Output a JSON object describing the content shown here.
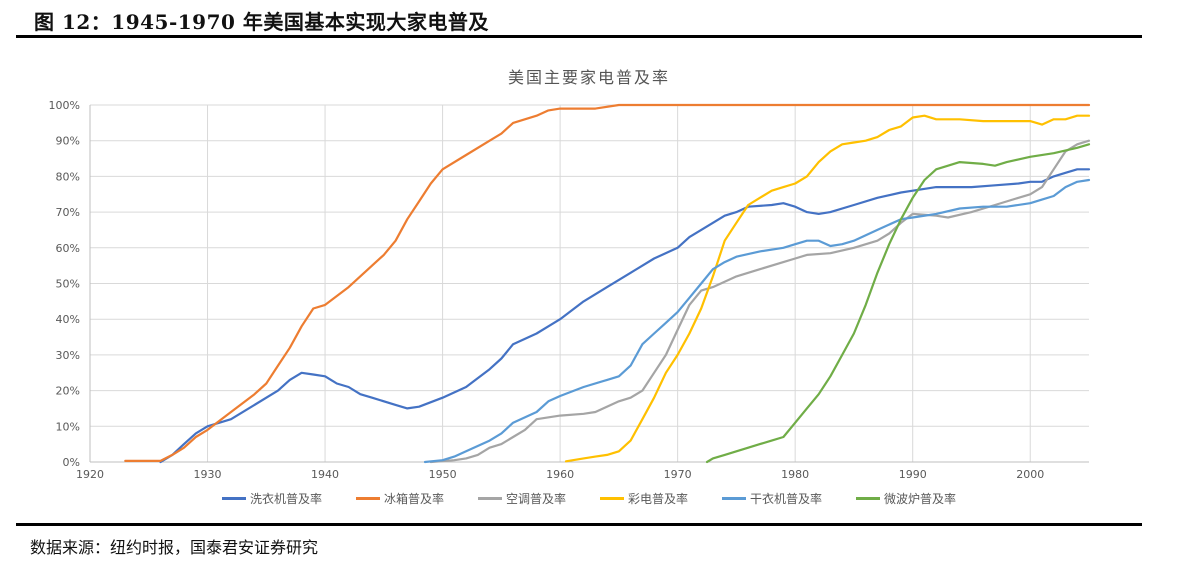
{
  "figure": {
    "title": "图 12：1945-1970 年美国基本实现大家电普及",
    "source": "数据来源：纽约时报，国泰君安证券研究"
  },
  "chart_data": {
    "type": "line",
    "title": "美国主要家电普及率",
    "xlabel": "",
    "ylabel": "",
    "x_ticks": [
      "1920",
      "1930",
      "1940",
      "1950",
      "1960",
      "1970",
      "1980",
      "1990",
      "2000"
    ],
    "y_ticks": [
      "0%",
      "10%",
      "20%",
      "30%",
      "40%",
      "50%",
      "60%",
      "70%",
      "80%",
      "90%",
      "100%"
    ],
    "xlim": [
      1920,
      2005
    ],
    "ylim": [
      0,
      100
    ],
    "grid": true,
    "legend_position": "bottom",
    "series": [
      {
        "name": "洗衣机普及率",
        "color": "#4472C4",
        "points": [
          [
            1926,
            0
          ],
          [
            1927,
            2
          ],
          [
            1928,
            5
          ],
          [
            1929,
            8
          ],
          [
            1930,
            10
          ],
          [
            1932,
            12
          ],
          [
            1934,
            16
          ],
          [
            1936,
            20
          ],
          [
            1937,
            23
          ],
          [
            1938,
            25
          ],
          [
            1939,
            24.5
          ],
          [
            1940,
            24
          ],
          [
            1941,
            22
          ],
          [
            1942,
            21
          ],
          [
            1943,
            19
          ],
          [
            1944,
            18
          ],
          [
            1946,
            16
          ],
          [
            1947,
            15
          ],
          [
            1948,
            15.5
          ],
          [
            1950,
            18
          ],
          [
            1952,
            21
          ],
          [
            1954,
            26
          ],
          [
            1955,
            29
          ],
          [
            1956,
            33
          ],
          [
            1958,
            36
          ],
          [
            1959,
            38
          ],
          [
            1960,
            40
          ],
          [
            1962,
            45
          ],
          [
            1964,
            49
          ],
          [
            1966,
            53
          ],
          [
            1968,
            57
          ],
          [
            1970,
            60
          ],
          [
            1971,
            63
          ],
          [
            1972,
            65
          ],
          [
            1974,
            69
          ],
          [
            1975,
            70
          ],
          [
            1976,
            71.5
          ],
          [
            1978,
            72
          ],
          [
            1979,
            72.5
          ],
          [
            1980,
            71.5
          ],
          [
            1981,
            70
          ],
          [
            1982,
            69.5
          ],
          [
            1983,
            70
          ],
          [
            1985,
            72
          ],
          [
            1987,
            74
          ],
          [
            1989,
            75.5
          ],
          [
            1990,
            76
          ],
          [
            1992,
            77
          ],
          [
            1995,
            77
          ],
          [
            1997,
            77.5
          ],
          [
            1999,
            78
          ],
          [
            2000,
            78.5
          ],
          [
            2001,
            78.5
          ],
          [
            2002,
            80
          ],
          [
            2003,
            81
          ],
          [
            2004,
            82
          ],
          [
            2005,
            82
          ]
        ]
      },
      {
        "name": "冰箱普及率",
        "color": "#ED7D31",
        "points": [
          [
            1923,
            0.3
          ],
          [
            1926,
            0.3
          ],
          [
            1927,
            2
          ],
          [
            1928,
            4
          ],
          [
            1929,
            7
          ],
          [
            1930,
            9
          ],
          [
            1932,
            14
          ],
          [
            1934,
            19
          ],
          [
            1935,
            22
          ],
          [
            1936,
            27
          ],
          [
            1937,
            32
          ],
          [
            1938,
            38
          ],
          [
            1939,
            43
          ],
          [
            1940,
            44
          ],
          [
            1942,
            49
          ],
          [
            1944,
            55
          ],
          [
            1945,
            58
          ],
          [
            1946,
            62
          ],
          [
            1947,
            68
          ],
          [
            1948,
            73
          ],
          [
            1949,
            78
          ],
          [
            1950,
            82
          ],
          [
            1952,
            86
          ],
          [
            1954,
            90
          ],
          [
            1955,
            92
          ],
          [
            1956,
            95
          ],
          [
            1958,
            97
          ],
          [
            1959,
            98.5
          ],
          [
            1960,
            99
          ],
          [
            1963,
            99
          ],
          [
            1965,
            100
          ],
          [
            1970,
            100
          ],
          [
            1980,
            100
          ],
          [
            1990,
            100
          ],
          [
            2000,
            100
          ],
          [
            2005,
            100
          ]
        ]
      },
      {
        "name": "空调普及率",
        "color": "#A5A5A5",
        "points": [
          [
            1949,
            0
          ],
          [
            1951,
            0.5
          ],
          [
            1952,
            1
          ],
          [
            1953,
            2
          ],
          [
            1954,
            4
          ],
          [
            1955,
            5
          ],
          [
            1956,
            7
          ],
          [
            1957,
            9
          ],
          [
            1958,
            12
          ],
          [
            1960,
            13
          ],
          [
            1962,
            13.5
          ],
          [
            1963,
            14
          ],
          [
            1965,
            17
          ],
          [
            1966,
            18
          ],
          [
            1967,
            20
          ],
          [
            1968,
            25
          ],
          [
            1969,
            30
          ],
          [
            1970,
            37
          ],
          [
            1971,
            44
          ],
          [
            1972,
            48
          ],
          [
            1973,
            49
          ],
          [
            1975,
            52
          ],
          [
            1977,
            54
          ],
          [
            1979,
            56
          ],
          [
            1980,
            57
          ],
          [
            1981,
            58
          ],
          [
            1983,
            58.5
          ],
          [
            1985,
            60
          ],
          [
            1987,
            62
          ],
          [
            1988,
            64
          ],
          [
            1989,
            67
          ],
          [
            1990,
            69.5
          ],
          [
            1992,
            69
          ],
          [
            1993,
            68.5
          ],
          [
            1995,
            70
          ],
          [
            1997,
            72
          ],
          [
            1999,
            74
          ],
          [
            2000,
            75
          ],
          [
            2001,
            77
          ],
          [
            2002,
            82
          ],
          [
            2003,
            87
          ],
          [
            2004,
            89
          ],
          [
            2005,
            90
          ]
        ]
      },
      {
        "name": "彩电普及率",
        "color": "#FFC000",
        "points": [
          [
            1960.5,
            0.2
          ],
          [
            1962,
            1
          ],
          [
            1963,
            1.5
          ],
          [
            1964,
            2
          ],
          [
            1965,
            3
          ],
          [
            1966,
            6
          ],
          [
            1967,
            12
          ],
          [
            1968,
            18
          ],
          [
            1969,
            25
          ],
          [
            1970,
            30
          ],
          [
            1971,
            36
          ],
          [
            1972,
            43
          ],
          [
            1973,
            52
          ],
          [
            1974,
            62
          ],
          [
            1975,
            67
          ],
          [
            1976,
            72
          ],
          [
            1977,
            74
          ],
          [
            1978,
            76
          ],
          [
            1979,
            77
          ],
          [
            1980,
            78
          ],
          [
            1981,
            80
          ],
          [
            1982,
            84
          ],
          [
            1983,
            87
          ],
          [
            1984,
            89
          ],
          [
            1985,
            89.5
          ],
          [
            1986,
            90
          ],
          [
            1987,
            91
          ],
          [
            1988,
            93
          ],
          [
            1989,
            94
          ],
          [
            1990,
            96.5
          ],
          [
            1991,
            97
          ],
          [
            1992,
            96
          ],
          [
            1994,
            96
          ],
          [
            1996,
            95.5
          ],
          [
            1998,
            95.5
          ],
          [
            2000,
            95.5
          ],
          [
            2001,
            94.5
          ],
          [
            2002,
            96
          ],
          [
            2003,
            96
          ],
          [
            2004,
            97
          ],
          [
            2005,
            97
          ]
        ]
      },
      {
        "name": "干衣机普及率",
        "color": "#5B9BD5",
        "points": [
          [
            1948.5,
            0
          ],
          [
            1950,
            0.5
          ],
          [
            1951,
            1.5
          ],
          [
            1952,
            3
          ],
          [
            1954,
            6
          ],
          [
            1955,
            8
          ],
          [
            1956,
            11
          ],
          [
            1958,
            14
          ],
          [
            1959,
            17
          ],
          [
            1960,
            18.5
          ],
          [
            1962,
            21
          ],
          [
            1964,
            23
          ],
          [
            1965,
            24
          ],
          [
            1966,
            27
          ],
          [
            1967,
            33
          ],
          [
            1968,
            36
          ],
          [
            1969,
            39
          ],
          [
            1970,
            42
          ],
          [
            1971,
            46
          ],
          [
            1972,
            50
          ],
          [
            1973,
            54
          ],
          [
            1974,
            56
          ],
          [
            1975,
            57.5
          ],
          [
            1977,
            59
          ],
          [
            1979,
            60
          ],
          [
            1980,
            61
          ],
          [
            1981,
            62
          ],
          [
            1982,
            62
          ],
          [
            1983,
            60.5
          ],
          [
            1984,
            61
          ],
          [
            1985,
            62
          ],
          [
            1987,
            65
          ],
          [
            1989,
            68
          ],
          [
            1990,
            68.5
          ],
          [
            1992,
            69.5
          ],
          [
            1994,
            71
          ],
          [
            1996,
            71.5
          ],
          [
            1998,
            71.5
          ],
          [
            2000,
            72.5
          ],
          [
            2001,
            73.5
          ],
          [
            2002,
            74.5
          ],
          [
            2003,
            77
          ],
          [
            2004,
            78.5
          ],
          [
            2005,
            79
          ]
        ]
      },
      {
        "name": "微波炉普及率",
        "color": "#70AD47",
        "points": [
          [
            1972.5,
            0
          ],
          [
            1973,
            1
          ],
          [
            1974,
            2
          ],
          [
            1975,
            3
          ],
          [
            1976,
            4
          ],
          [
            1977,
            5
          ],
          [
            1978,
            6
          ],
          [
            1979,
            7
          ],
          [
            1980,
            11
          ],
          [
            1981,
            15
          ],
          [
            1982,
            19
          ],
          [
            1983,
            24
          ],
          [
            1984,
            30
          ],
          [
            1985,
            36
          ],
          [
            1986,
            44
          ],
          [
            1987,
            53
          ],
          [
            1988,
            61
          ],
          [
            1989,
            68
          ],
          [
            1990,
            74
          ],
          [
            1991,
            79
          ],
          [
            1992,
            82
          ],
          [
            1993,
            83
          ],
          [
            1994,
            84
          ],
          [
            1996,
            83.5
          ],
          [
            1997,
            83
          ],
          [
            1998,
            84
          ],
          [
            2000,
            85.5
          ],
          [
            2002,
            86.5
          ],
          [
            2004,
            88
          ],
          [
            2005,
            89
          ]
        ]
      }
    ]
  }
}
